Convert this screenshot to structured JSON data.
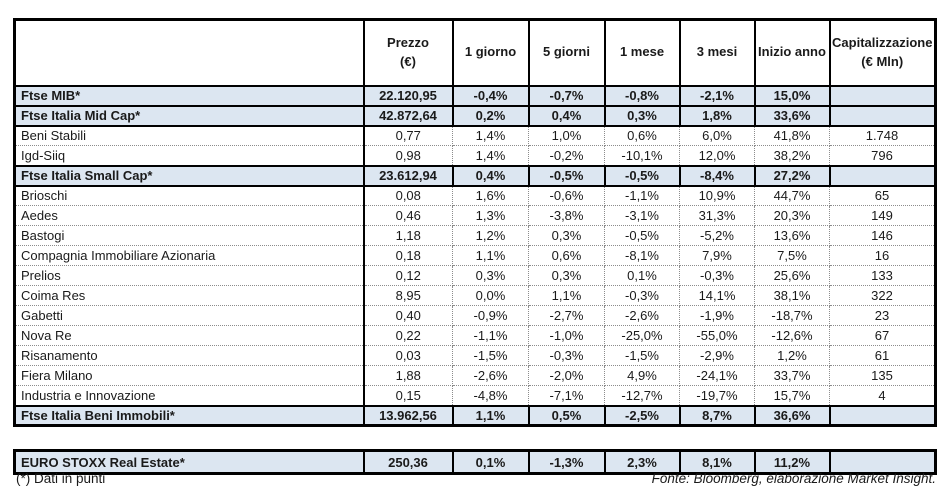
{
  "colors": {
    "index_row_bg": "#dce6f1",
    "border": "#000000",
    "dotted_grid": "#8c8c8c"
  },
  "table": {
    "columns": [
      {
        "key": "prezzo",
        "title": "Prezzo",
        "sub": "(€)"
      },
      {
        "key": "1-giorno",
        "title": "1 giorno",
        "sub": ""
      },
      {
        "key": "5-giorni",
        "title": "5 giorni",
        "sub": ""
      },
      {
        "key": "1-mese",
        "title": "1 mese",
        "sub": ""
      },
      {
        "key": "3-mesi",
        "title": "3 mesi",
        "sub": ""
      },
      {
        "key": "inizio-anno",
        "title": "Inizio anno",
        "sub": ""
      },
      {
        "key": "capitalizzazione",
        "title": "Capitalizzazione",
        "sub": "(€ Mln)"
      }
    ],
    "rows": [
      {
        "name": "Ftse MIB*",
        "type": "index",
        "values": [
          "22.120,95",
          "-0,4%",
          "-0,7%",
          "-0,8%",
          "-2,1%",
          "15,0%",
          ""
        ]
      },
      {
        "name": "Ftse Italia Mid Cap*",
        "type": "index",
        "values": [
          "42.872,64",
          "0,2%",
          "0,4%",
          "0,3%",
          "1,8%",
          "33,6%",
          ""
        ]
      },
      {
        "name": "Beni Stabili",
        "type": "stock",
        "values": [
          "0,77",
          "1,4%",
          "1,0%",
          "0,6%",
          "6,0%",
          "41,8%",
          "1.748"
        ]
      },
      {
        "name": "Igd-Siiq",
        "type": "stock",
        "values": [
          "0,98",
          "1,4%",
          "-0,2%",
          "-10,1%",
          "12,0%",
          "38,2%",
          "796"
        ]
      },
      {
        "name": "Ftse Italia Small Cap*",
        "type": "index",
        "values": [
          "23.612,94",
          "0,4%",
          "-0,5%",
          "-0,5%",
          "-8,4%",
          "27,2%",
          ""
        ]
      },
      {
        "name": "Brioschi",
        "type": "stock",
        "values": [
          "0,08",
          "1,6%",
          "-0,6%",
          "-1,1%",
          "10,9%",
          "44,7%",
          "65"
        ]
      },
      {
        "name": "Aedes",
        "type": "stock",
        "values": [
          "0,46",
          "1,3%",
          "-3,8%",
          "-3,1%",
          "31,3%",
          "20,3%",
          "149"
        ]
      },
      {
        "name": "Bastogi",
        "type": "stock",
        "values": [
          "1,18",
          "1,2%",
          "0,3%",
          "-0,5%",
          "-5,2%",
          "13,6%",
          "146"
        ]
      },
      {
        "name": "Compagnia Immobiliare Azionaria",
        "type": "stock",
        "values": [
          "0,18",
          "1,1%",
          "0,6%",
          "-8,1%",
          "7,9%",
          "7,5%",
          "16"
        ]
      },
      {
        "name": "Prelios",
        "type": "stock",
        "values": [
          "0,12",
          "0,3%",
          "0,3%",
          "0,1%",
          "-0,3%",
          "25,6%",
          "133"
        ]
      },
      {
        "name": "Coima Res",
        "type": "stock",
        "values": [
          "8,95",
          "0,0%",
          "1,1%",
          "-0,3%",
          "14,1%",
          "38,1%",
          "322"
        ]
      },
      {
        "name": "Gabetti",
        "type": "stock",
        "values": [
          "0,40",
          "-0,9%",
          "-2,7%",
          "-2,6%",
          "-1,9%",
          "-18,7%",
          "23"
        ]
      },
      {
        "name": "Nova Re",
        "type": "stock",
        "values": [
          "0,22",
          "-1,1%",
          "-1,0%",
          "-25,0%",
          "-55,0%",
          "-12,6%",
          "67"
        ]
      },
      {
        "name": "Risanamento",
        "type": "stock",
        "values": [
          "0,03",
          "-1,5%",
          "-0,3%",
          "-1,5%",
          "-2,9%",
          "1,2%",
          "61"
        ]
      },
      {
        "name": "Fiera Milano",
        "type": "stock",
        "values": [
          "1,88",
          "-2,6%",
          "-2,0%",
          "4,9%",
          "-24,1%",
          "33,7%",
          "135"
        ]
      },
      {
        "name": "Industria e Innovazione",
        "type": "stock",
        "values": [
          "0,15",
          "-4,8%",
          "-7,1%",
          "-12,7%",
          "-19,7%",
          "15,7%",
          "4"
        ]
      },
      {
        "name": "Ftse Italia Beni Immobili*",
        "type": "index",
        "values": [
          "13.962,56",
          "1,1%",
          "0,5%",
          "-2,5%",
          "8,7%",
          "36,6%",
          ""
        ]
      }
    ],
    "euro_row": {
      "name": "EURO STOXX Real Estate*",
      "type": "index",
      "values": [
        "250,36",
        "0,1%",
        "-1,3%",
        "2,3%",
        "8,1%",
        "11,2%",
        ""
      ]
    }
  },
  "footer": {
    "footnote": "(*) Dati in punti",
    "source": "Fonte: Bloomberg, elaborazione Market Insight."
  }
}
